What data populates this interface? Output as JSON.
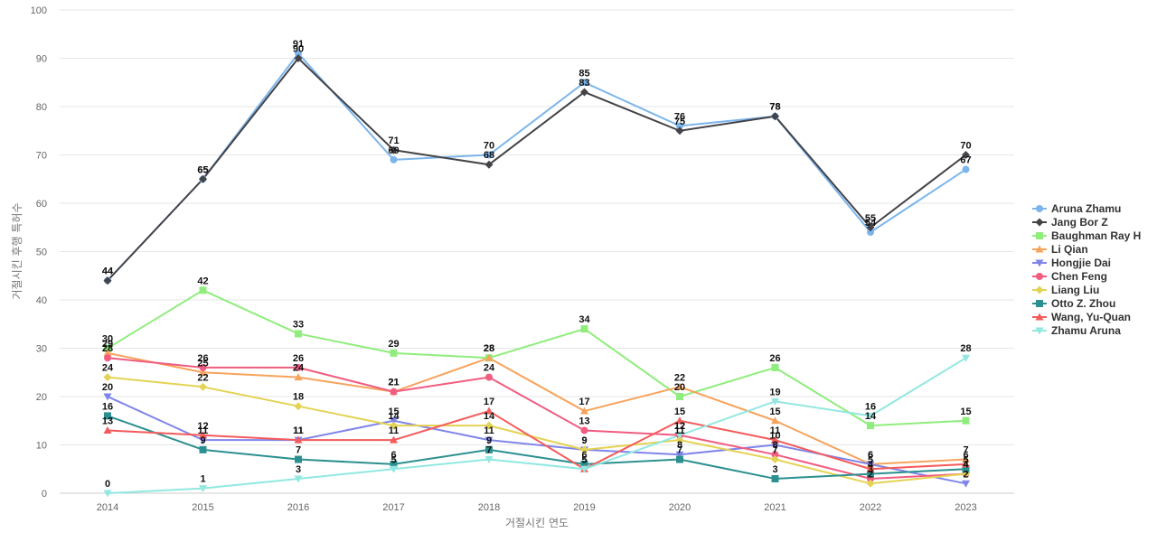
{
  "chart_data": {
    "type": "line",
    "title": "",
    "xlabel": "거절시킨 연도",
    "ylabel": "거절시킨 후행 특허수",
    "ylim": [
      0,
      100
    ],
    "yticks": [
      0,
      10,
      20,
      30,
      40,
      50,
      60,
      70,
      80,
      90,
      100
    ],
    "grid": true,
    "legend_position": "right",
    "data_labels": true,
    "x": [
      "2014",
      "2015",
      "2016",
      "2017",
      "2018",
      "2019",
      "2020",
      "2021",
      "2022",
      "2023"
    ],
    "series": [
      {
        "name": "Aruna Zhamu",
        "color": "#7cb5ec",
        "marker": "circle",
        "values": [
          44,
          65,
          91,
          69,
          70,
          85,
          76,
          78,
          54,
          67
        ]
      },
      {
        "name": "Jang Bor Z",
        "color": "#434348",
        "marker": "diamond",
        "values": [
          44,
          65,
          90,
          71,
          68,
          83,
          75,
          78,
          55,
          70
        ]
      },
      {
        "name": "Baughman Ray H",
        "color": "#90ed7d",
        "marker": "square",
        "values": [
          30,
          42,
          33,
          29,
          28,
          34,
          20,
          26,
          14,
          15
        ]
      },
      {
        "name": "Li Qian",
        "color": "#f7a35c",
        "marker": "triangle",
        "values": [
          29,
          25,
          24,
          21,
          28,
          17,
          22,
          15,
          6,
          7
        ]
      },
      {
        "name": "Hongjie Dai",
        "color": "#8085e9",
        "marker": "triangle-down",
        "values": [
          20,
          11,
          11,
          15,
          11,
          9,
          8,
          10,
          6,
          2
        ]
      },
      {
        "name": "Chen Feng",
        "color": "#f15c80",
        "marker": "circle",
        "values": [
          28,
          26,
          26,
          21,
          24,
          13,
          12,
          8,
          3,
          4
        ]
      },
      {
        "name": "Liang Liu",
        "color": "#e4d354",
        "marker": "diamond",
        "values": [
          24,
          22,
          18,
          14,
          14,
          9,
          11,
          7,
          2,
          4
        ]
      },
      {
        "name": "Otto Z. Zhou",
        "color": "#2b908f",
        "marker": "square",
        "values": [
          16,
          9,
          7,
          6,
          9,
          6,
          7,
          3,
          4,
          5
        ]
      },
      {
        "name": "Wang, Yu-Quan",
        "color": "#f45b5b",
        "marker": "triangle",
        "values": [
          13,
          12,
          11,
          11,
          17,
          5,
          15,
          11,
          5,
          6
        ]
      },
      {
        "name": "Zhamu Aruna",
        "color": "#91e8e1",
        "marker": "triangle-down",
        "values": [
          0,
          1,
          3,
          5,
          7,
          5,
          12,
          19,
          16,
          28
        ]
      }
    ]
  }
}
